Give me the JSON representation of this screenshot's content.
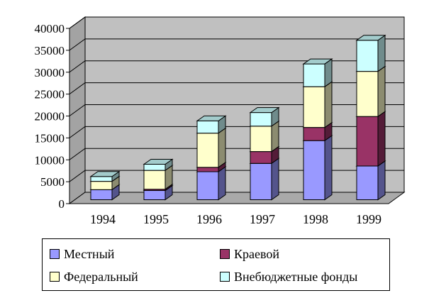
{
  "chart_data": {
    "type": "bar",
    "stacked": true,
    "three_d": true,
    "categories": [
      "1994",
      "1995",
      "1996",
      "1997",
      "1998",
      "1999"
    ],
    "series": [
      {
        "name": "Местный",
        "values": [
          2300,
          2100,
          6400,
          8300,
          13500,
          7700
        ],
        "color": "#9999ff"
      },
      {
        "name": "Краевой",
        "values": [
          0,
          300,
          1000,
          2700,
          3000,
          11300
        ],
        "color": "#993366"
      },
      {
        "name": "Федеральный",
        "values": [
          1900,
          4300,
          7800,
          5800,
          9300,
          10300
        ],
        "color": "#ffffcc"
      },
      {
        "name": "Внебюджетные фонды",
        "values": [
          1100,
          1400,
          2800,
          3100,
          5200,
          7100
        ],
        "color": "#ccffff"
      }
    ],
    "yticks": [
      "0",
      "5000",
      "10000",
      "15000",
      "20000",
      "25000",
      "30000",
      "35000",
      "40000"
    ],
    "ylim": [
      0,
      40000
    ],
    "grid": true,
    "legend_position": "bottom",
    "wall_color": "#c0c0c0",
    "floor_color": "#a9a9a9"
  }
}
